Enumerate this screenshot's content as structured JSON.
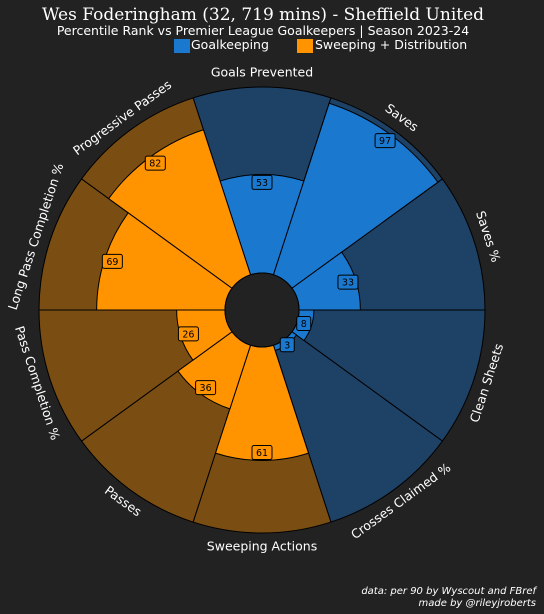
{
  "title": "Wes Foderingham (32, 719 mins) - Sheffield United",
  "subtitle": "Percentile Rank vs Premier League Goalkeepers | Season 2023-24",
  "legend": [
    {
      "label": "Goalkeeping",
      "color": "#1A78CF"
    },
    {
      "label": "Sweeping + Distribution",
      "color": "#FF9300"
    }
  ],
  "colors": {
    "background": "#222222",
    "goalkeeping_fill": "#1A78CF",
    "goalkeeping_slice_bg": "#1E4166",
    "distribution_fill": "#FF9300",
    "distribution_slice_bg": "#7A4E13",
    "center": "#222222",
    "edge": "#000000"
  },
  "chart_data": {
    "type": "pizza",
    "rlim": [
      0,
      100
    ],
    "categories": [
      "Goals Prevented",
      "Saves",
      "Saves %",
      "Clean Sheets",
      "Crosses Claimed %",
      "Sweeping Actions",
      "Passes",
      "Pass Completion %",
      "Long Pass Completion %",
      "Progressive Passes"
    ],
    "values": [
      53,
      97,
      33,
      8,
      3,
      61,
      36,
      26,
      69,
      82
    ],
    "groups": [
      "Goalkeeping",
      "Goalkeeping",
      "Goalkeeping",
      "Goalkeeping",
      "Goalkeeping",
      "Sweeping + Distribution",
      "Sweeping + Distribution",
      "Sweeping + Distribution",
      "Sweeping + Distribution",
      "Sweeping + Distribution"
    ]
  },
  "footer": {
    "line1": "data: per 90 by Wyscout and FBref",
    "line2": "made by @rileyjroberts"
  }
}
